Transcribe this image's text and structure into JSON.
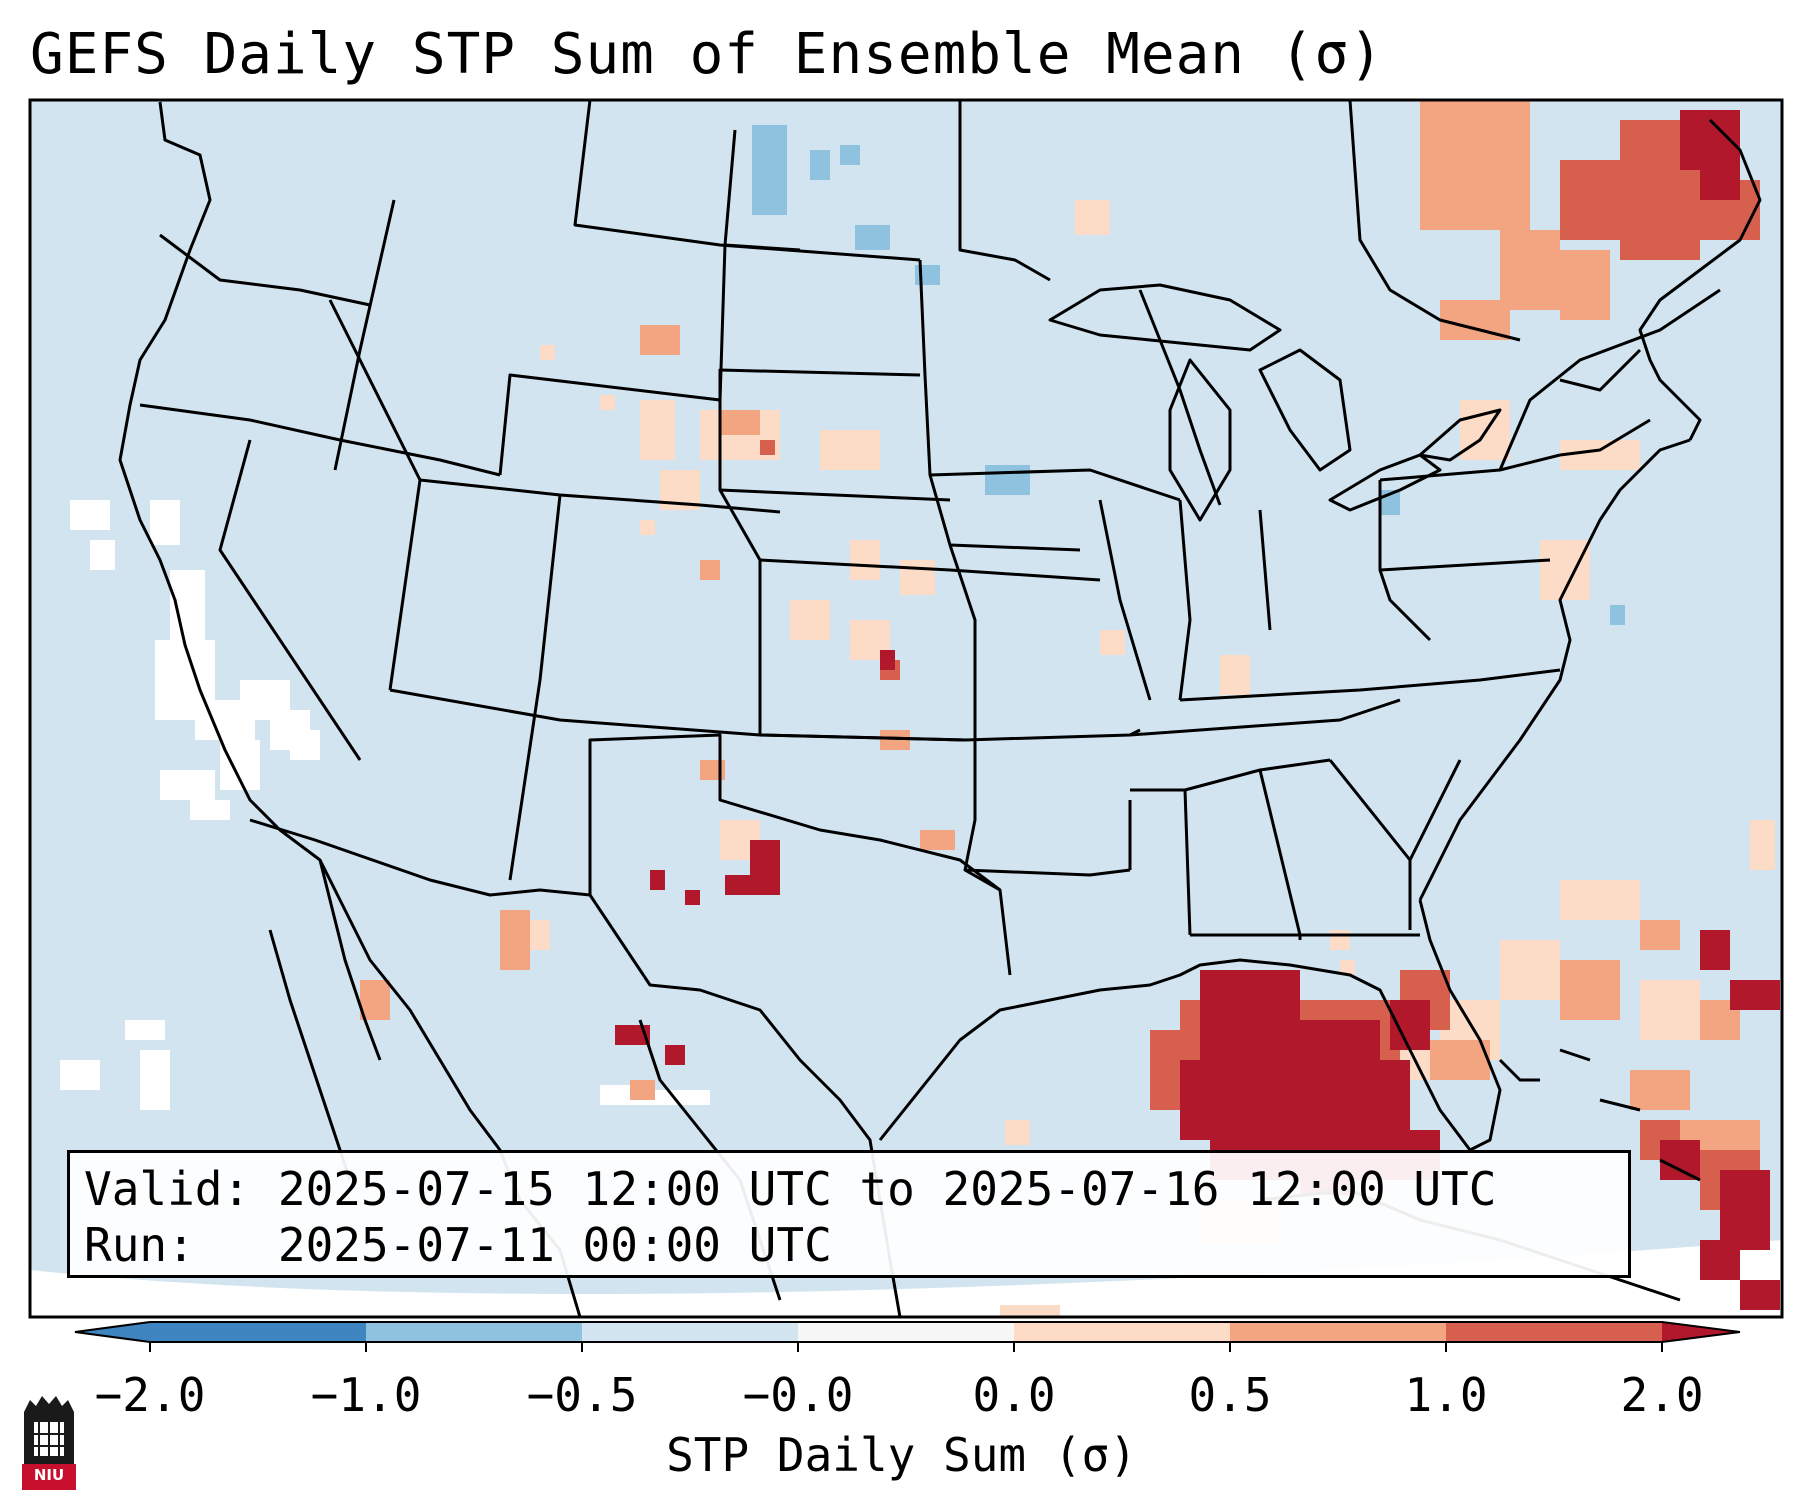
{
  "title": "GEFS Daily STP Sum of Ensemble Mean (σ)",
  "valid_label": "Valid:",
  "valid_value": "2025-07-15 12:00 UTC to 2025-07-16 12:00 UTC",
  "run_label": "Run:",
  "run_value": "2025-07-11 00:00 UTC",
  "colorbar": {
    "ticks": [
      "−2.0",
      "−1.0",
      "−0.5",
      "−0.0",
      "0.0",
      "0.5",
      "1.0",
      "2.0"
    ],
    "label": "STP Daily Sum (σ)",
    "colors": [
      "#3f86c0",
      "#8fc2de",
      "#d3e5f1",
      "#f7f7f7",
      "#fcdbc7",
      "#f3a582",
      "#d6604d",
      "#b2182b"
    ]
  },
  "map": {
    "background_color": "#d1e4f0",
    "region": "Continental United States",
    "anomaly_areas": [
      {
        "area": "Florida and eastern Gulf of Mexico",
        "category": "above 2.0"
      },
      {
        "area": "Quebec / New England",
        "category": "1.0 to 2.0"
      },
      {
        "area": "Eastern New Mexico / West Texas",
        "category": "1.0 to 2.0"
      },
      {
        "area": "Northern Plains and Colorado",
        "category": "0.0 to 1.0"
      },
      {
        "area": "California / Nevada",
        "category": "-0.0 to 0.0"
      },
      {
        "area": "North Dakota / Montana border",
        "category": "-1.0 to -0.5"
      }
    ]
  },
  "logo": {
    "text": "NIU"
  }
}
